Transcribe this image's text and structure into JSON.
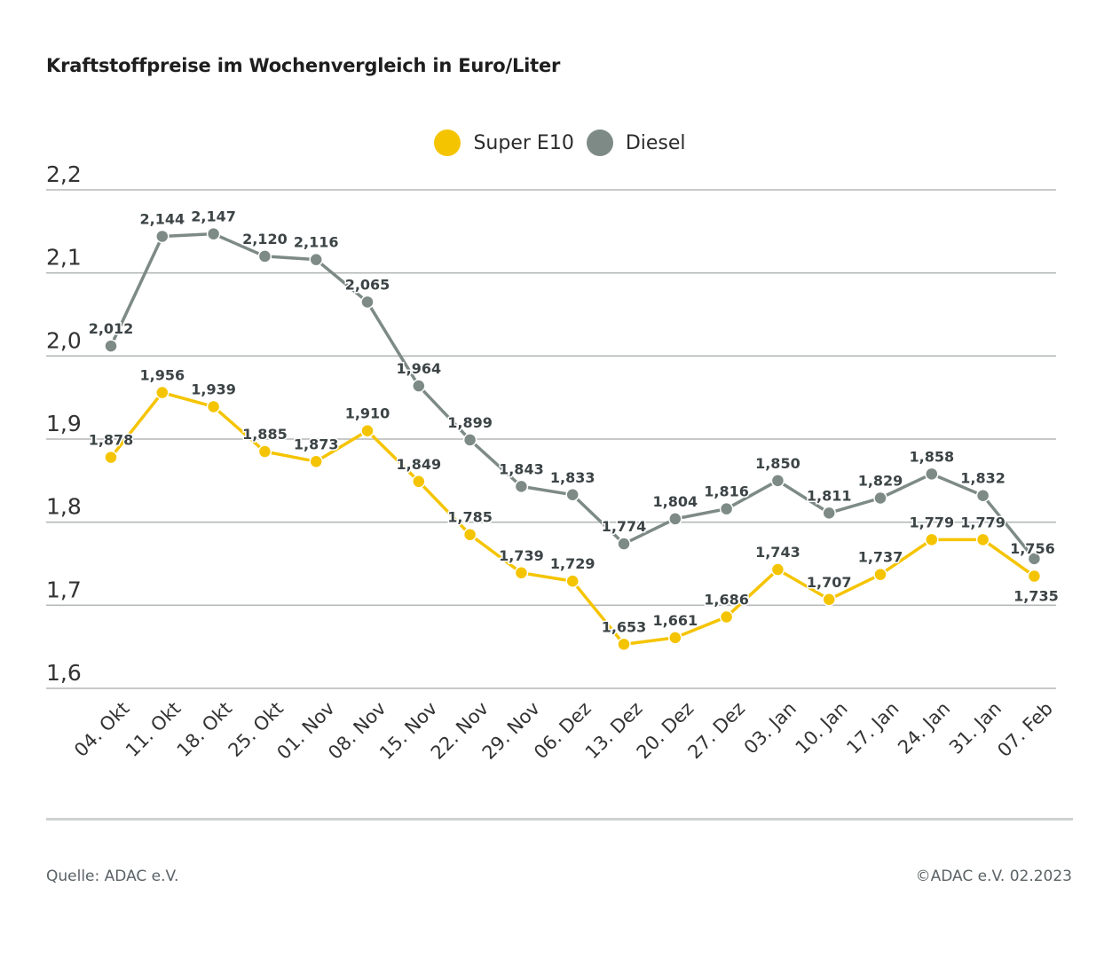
{
  "title": "Kraftstoffpreise im Wochenvergleich in Euro/Liter",
  "source": "Quelle: ADAC e.V.",
  "copyright": "©ADAC e.V. 02.2023",
  "colors": {
    "super": "#f5c400",
    "diesel": "#7d8a86",
    "grid": "#b5b8b8",
    "axis_text": "#333333"
  },
  "chart_data": {
    "type": "line",
    "categories": [
      "04. Okt",
      "11. Okt",
      "18. Okt",
      "25. Okt",
      "01. Nov",
      "08. Nov",
      "15. Nov",
      "22. Nov",
      "29. Nov",
      "06. Dez",
      "13. Dez",
      "20. Dez",
      "27. Dez",
      "03. Jan",
      "10. Jan",
      "17. Jan",
      "24. Jan",
      "31. Jan",
      "07. Feb"
    ],
    "ylim": [
      1.6,
      2.2
    ],
    "yticks": [
      {
        "value": 1.6,
        "label": "1,6"
      },
      {
        "value": 1.7,
        "label": "1,7"
      },
      {
        "value": 1.8,
        "label": "1,8"
      },
      {
        "value": 1.9,
        "label": "1,9"
      },
      {
        "value": 2.0,
        "label": "2,0"
      },
      {
        "value": 2.1,
        "label": "2,1"
      },
      {
        "value": 2.2,
        "label": "2,2"
      }
    ],
    "grid": true,
    "legend_position": "top-center",
    "series": [
      {
        "name": "Super E10",
        "color": "#f5c400",
        "values": [
          1.878,
          1.956,
          1.939,
          1.885,
          1.873,
          1.91,
          1.849,
          1.785,
          1.739,
          1.729,
          1.653,
          1.661,
          1.686,
          1.743,
          1.707,
          1.737,
          1.779,
          1.779,
          1.735
        ],
        "labels": [
          "1,878",
          "1,956",
          "1,939",
          "1,885",
          "1,873",
          "1,910",
          "1,849",
          "1,785",
          "1,739",
          "1,729",
          "1,653",
          "1,661",
          "1,686",
          "1,743",
          "1,707",
          "1,737",
          "1,779",
          "1,779",
          "1,735"
        ]
      },
      {
        "name": "Diesel",
        "color": "#7d8a86",
        "values": [
          2.012,
          2.144,
          2.147,
          2.12,
          2.116,
          2.065,
          1.964,
          1.899,
          1.843,
          1.833,
          1.774,
          1.804,
          1.816,
          1.85,
          1.811,
          1.829,
          1.858,
          1.832,
          1.756
        ],
        "labels": [
          "2,012",
          "2,144",
          "2,147",
          "2,120",
          "2,116",
          "2,065",
          "1,964",
          "1,899",
          "1,843",
          "1,833",
          "1,774",
          "1,804",
          "1,816",
          "1,850",
          "1,811",
          "1,829",
          "1,858",
          "1,832",
          "1,756"
        ]
      }
    ]
  }
}
